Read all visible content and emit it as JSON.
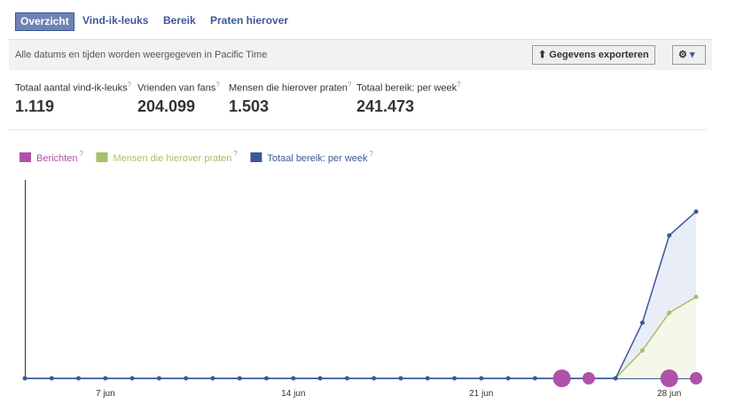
{
  "tabs": [
    "Overzicht",
    "Vind-ik-leuks",
    "Bereik",
    "Praten hierover"
  ],
  "timezone_note": "Alle datums en tijden worden weergegeven in Pacific Time",
  "export_button": "Gegevens exporteren",
  "help_icon": "?",
  "stats": [
    {
      "label": "Totaal aantal vind-ik-leuks",
      "value": "1.119"
    },
    {
      "label": "Vrienden van fans",
      "value": "204.099"
    },
    {
      "label": "Mensen die hierover praten",
      "value": "1.503"
    },
    {
      "label": "Totaal bereik: per week",
      "value": "241.473"
    }
  ],
  "chart_data": {
    "type": "line",
    "categories": [
      null,
      null,
      null,
      "7 jun",
      null,
      null,
      null,
      null,
      null,
      null,
      "14 jun",
      null,
      null,
      null,
      null,
      null,
      null,
      "21 jun",
      null,
      null,
      null,
      null,
      null,
      null,
      "28 jun",
      null
    ],
    "ylim": [
      0,
      100
    ],
    "series": [
      {
        "name": "Berichten",
        "color": "#b050a8",
        "values": [
          null,
          null,
          null,
          null,
          null,
          null,
          null,
          null,
          null,
          null,
          null,
          null,
          null,
          null,
          null,
          null,
          null,
          null,
          null,
          null,
          2,
          1,
          null,
          null,
          2,
          1
        ]
      },
      {
        "name": "Mensen die hierover praten",
        "color": "#a8bf6a",
        "values": [
          null,
          null,
          null,
          null,
          null,
          null,
          null,
          null,
          null,
          null,
          null,
          null,
          null,
          null,
          null,
          null,
          null,
          null,
          null,
          null,
          null,
          null,
          0,
          14,
          33,
          41
        ]
      },
      {
        "name": "Totaal bereik: per week",
        "color": "#3b5998",
        "values": [
          0,
          0,
          0,
          0,
          0,
          0,
          0,
          0,
          0,
          0,
          0,
          0,
          0,
          0,
          0,
          0,
          0,
          0,
          0,
          0,
          0,
          0,
          0,
          28,
          72,
          84
        ]
      }
    ]
  }
}
